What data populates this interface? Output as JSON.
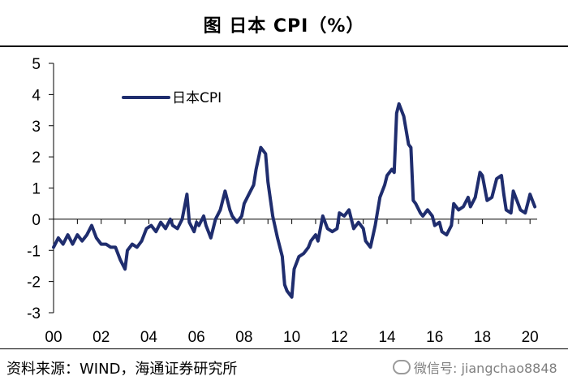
{
  "title": "图 日本 CPI（%）",
  "source": "资料来源：WIND，海通证券研究所",
  "watermark": "微信号: jiangchao8848",
  "chart_data": {
    "type": "line",
    "title": "图 日本 CPI（%）",
    "ylim": [
      -3,
      5
    ],
    "yticks": [
      5,
      4,
      3,
      2,
      1,
      0,
      -1,
      -2,
      -3
    ],
    "xlim": [
      2000,
      2020.3
    ],
    "xticks": [
      {
        "value": 2000,
        "label": "00"
      },
      {
        "value": 2002,
        "label": "02"
      },
      {
        "value": 2004,
        "label": "04"
      },
      {
        "value": 2006,
        "label": "06"
      },
      {
        "value": 2008,
        "label": "08"
      },
      {
        "value": 2010,
        "label": "10"
      },
      {
        "value": 2012,
        "label": "12"
      },
      {
        "value": 2014,
        "label": "14"
      },
      {
        "value": 2016,
        "label": "16"
      },
      {
        "value": 2018,
        "label": "18"
      },
      {
        "value": 2020,
        "label": "20"
      }
    ],
    "legend_position": "top-left",
    "color": "#1f2d6e",
    "series": [
      {
        "name": "日本CPI",
        "points": [
          [
            2000.0,
            -0.9
          ],
          [
            2000.2,
            -0.6
          ],
          [
            2000.4,
            -0.8
          ],
          [
            2000.6,
            -0.5
          ],
          [
            2000.8,
            -0.8
          ],
          [
            2001.0,
            -0.5
          ],
          [
            2001.2,
            -0.7
          ],
          [
            2001.4,
            -0.5
          ],
          [
            2001.6,
            -0.2
          ],
          [
            2001.8,
            -0.6
          ],
          [
            2002.0,
            -0.8
          ],
          [
            2002.2,
            -0.8
          ],
          [
            2002.4,
            -0.9
          ],
          [
            2002.6,
            -0.9
          ],
          [
            2002.8,
            -1.3
          ],
          [
            2003.0,
            -1.6
          ],
          [
            2003.1,
            -1.0
          ],
          [
            2003.3,
            -0.8
          ],
          [
            2003.5,
            -0.9
          ],
          [
            2003.7,
            -0.7
          ],
          [
            2003.9,
            -0.3
          ],
          [
            2004.1,
            -0.2
          ],
          [
            2004.3,
            -0.4
          ],
          [
            2004.5,
            -0.1
          ],
          [
            2004.7,
            -0.3
          ],
          [
            2004.9,
            0.0
          ],
          [
            2005.0,
            -0.2
          ],
          [
            2005.2,
            -0.3
          ],
          [
            2005.4,
            0.0
          ],
          [
            2005.6,
            0.8
          ],
          [
            2005.7,
            -0.1
          ],
          [
            2005.9,
            -0.4
          ],
          [
            2006.0,
            -0.1
          ],
          [
            2006.1,
            -0.2
          ],
          [
            2006.3,
            0.1
          ],
          [
            2006.4,
            -0.2
          ],
          [
            2006.6,
            -0.6
          ],
          [
            2006.8,
            0.0
          ],
          [
            2007.0,
            0.3
          ],
          [
            2007.2,
            0.9
          ],
          [
            2007.4,
            0.3
          ],
          [
            2007.5,
            0.1
          ],
          [
            2007.7,
            -0.1
          ],
          [
            2007.9,
            0.1
          ],
          [
            2008.0,
            0.5
          ],
          [
            2008.2,
            0.8
          ],
          [
            2008.4,
            1.1
          ],
          [
            2008.5,
            1.6
          ],
          [
            2008.7,
            2.3
          ],
          [
            2008.9,
            2.1
          ],
          [
            2009.0,
            1.2
          ],
          [
            2009.2,
            0.1
          ],
          [
            2009.4,
            -0.6
          ],
          [
            2009.6,
            -1.2
          ],
          [
            2009.7,
            -2.1
          ],
          [
            2009.8,
            -2.3
          ],
          [
            2010.0,
            -2.5
          ],
          [
            2010.1,
            -1.6
          ],
          [
            2010.3,
            -1.2
          ],
          [
            2010.5,
            -1.1
          ],
          [
            2010.7,
            -0.9
          ],
          [
            2010.8,
            -0.7
          ],
          [
            2011.0,
            -0.5
          ],
          [
            2011.1,
            -0.7
          ],
          [
            2011.3,
            0.1
          ],
          [
            2011.5,
            -0.3
          ],
          [
            2011.7,
            -0.4
          ],
          [
            2011.9,
            -0.3
          ],
          [
            2012.0,
            0.2
          ],
          [
            2012.2,
            0.1
          ],
          [
            2012.4,
            0.3
          ],
          [
            2012.6,
            -0.3
          ],
          [
            2012.8,
            -0.1
          ],
          [
            2013.0,
            -0.3
          ],
          [
            2013.1,
            -0.7
          ],
          [
            2013.3,
            -0.9
          ],
          [
            2013.5,
            -0.2
          ],
          [
            2013.7,
            0.7
          ],
          [
            2013.9,
            1.1
          ],
          [
            2014.0,
            1.4
          ],
          [
            2014.2,
            1.6
          ],
          [
            2014.3,
            1.5
          ],
          [
            2014.4,
            3.4
          ],
          [
            2014.5,
            3.7
          ],
          [
            2014.7,
            3.3
          ],
          [
            2014.9,
            2.4
          ],
          [
            2015.0,
            2.3
          ],
          [
            2015.1,
            0.6
          ],
          [
            2015.2,
            0.5
          ],
          [
            2015.4,
            0.2
          ],
          [
            2015.5,
            0.1
          ],
          [
            2015.7,
            0.3
          ],
          [
            2015.9,
            0.1
          ],
          [
            2016.0,
            -0.2
          ],
          [
            2016.2,
            -0.1
          ],
          [
            2016.3,
            -0.4
          ],
          [
            2016.5,
            -0.5
          ],
          [
            2016.7,
            -0.2
          ],
          [
            2016.8,
            0.5
          ],
          [
            2017.0,
            0.3
          ],
          [
            2017.2,
            0.4
          ],
          [
            2017.4,
            0.7
          ],
          [
            2017.5,
            0.4
          ],
          [
            2017.7,
            0.7
          ],
          [
            2017.9,
            1.5
          ],
          [
            2018.0,
            1.4
          ],
          [
            2018.2,
            0.6
          ],
          [
            2018.4,
            0.7
          ],
          [
            2018.6,
            1.3
          ],
          [
            2018.8,
            1.4
          ],
          [
            2018.9,
            0.8
          ],
          [
            2019.0,
            0.3
          ],
          [
            2019.2,
            0.2
          ],
          [
            2019.3,
            0.9
          ],
          [
            2019.5,
            0.5
          ],
          [
            2019.6,
            0.3
          ],
          [
            2019.8,
            0.2
          ],
          [
            2019.9,
            0.5
          ],
          [
            2020.0,
            0.8
          ],
          [
            2020.2,
            0.4
          ]
        ]
      }
    ]
  }
}
